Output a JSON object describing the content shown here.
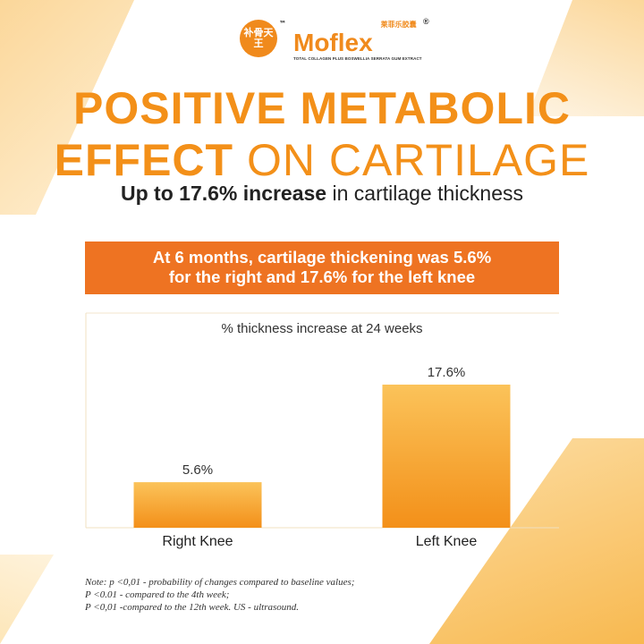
{
  "logo": {
    "seal_text": "补骨天王",
    "tm": "™",
    "brand": "Moflex",
    "brand_cn": "莱菲乐胶囊",
    "reg": "®",
    "tagline": "TOTAL COLLAGEN PLUS BOSWELLIA SERRATA GUM EXTRACT"
  },
  "header": {
    "title_bold_1": "POSITIVE METABOLIC",
    "title_bold_2": "EFFECT",
    "title_light": " ON CARTILAGE",
    "subtitle_bold": "Up to 17.6% increase",
    "subtitle_rest": " in cartilage thickness"
  },
  "banner": {
    "line1": "At 6 months, cartilage thickening was 5.6%",
    "line2": "for the right and 17.6% for the left knee"
  },
  "colors": {
    "accent": "#f39019",
    "banner": "#ee7322",
    "bar_top": "#fbc35a",
    "bar_bottom": "#f39019"
  },
  "chart_data": {
    "type": "bar",
    "title": "% thickness increase at 24 weeks",
    "categories": [
      "Right Knee",
      "Left Knee"
    ],
    "values": [
      5.6,
      17.6
    ],
    "data_labels": [
      "5.6%",
      "17.6%"
    ],
    "xlabel": "",
    "ylabel": "",
    "ylim": [
      0,
      26
    ],
    "grid": false
  },
  "note": [
    "Note: p <0,01 - probability of changes compared to baseline values;",
    "P <0.01 - compared to the 4th week;",
    "P <0,01 -compared to the 12th week. US - ultrasound."
  ]
}
